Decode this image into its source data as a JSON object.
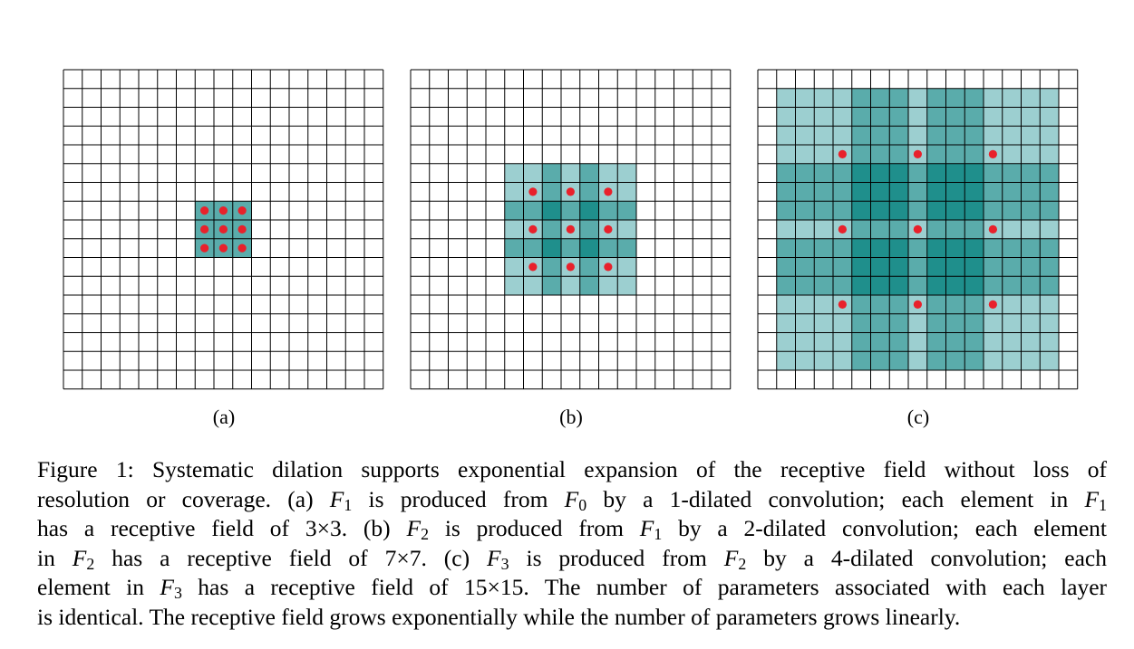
{
  "figure": {
    "panels": [
      {
        "id": "a",
        "label": "(a)",
        "grid_cells": 17,
        "dilation": 1,
        "receptive_field": 3
      },
      {
        "id": "b",
        "label": "(b)",
        "grid_cells": 17,
        "dilation": 2,
        "receptive_field": 7
      },
      {
        "id": "c",
        "label": "(c)",
        "grid_cells": 17,
        "dilation": 4,
        "receptive_field": 15
      }
    ],
    "colors": {
      "grid_line": "#000000",
      "dot": "#e8212b",
      "shade_1": "#9ccfd0",
      "shade_2": "#5aacab",
      "shade_3": "#1f8f8c"
    }
  },
  "caption": {
    "figure_label": "Figure 1:",
    "l1_text": "Systematic dilation supports exponential expansion of the receptive field without loss of",
    "l2_a": "resolution or coverage. (a)",
    "l2_F": "F",
    "l2_s1": "1",
    "l2_b": "is produced from",
    "l2_s2": "0",
    "l2_c": "by a 1-dilated convolution; each element in",
    "l2_s3": "1",
    "l3_a": "has a receptive field of 3×3. (b)",
    "l3_s1": "2",
    "l3_b": "is produced from",
    "l3_s2": "1",
    "l3_c": "by a 2-dilated convolution; each element",
    "l4_a": "in",
    "l4_s1": "2",
    "l4_b": "has a receptive field of 7×7. (c)",
    "l4_s2": "3",
    "l4_c": "is produced from",
    "l4_s3": "2",
    "l4_d": "by a 4-dilated convolution; each",
    "l5_a": "element in",
    "l5_s1": "3",
    "l5_b": "has a receptive field of 15×15. The number of parameters associated with each layer",
    "l6_text": "is identical. The receptive field grows exponentially while the number of parameters grows linearly."
  }
}
